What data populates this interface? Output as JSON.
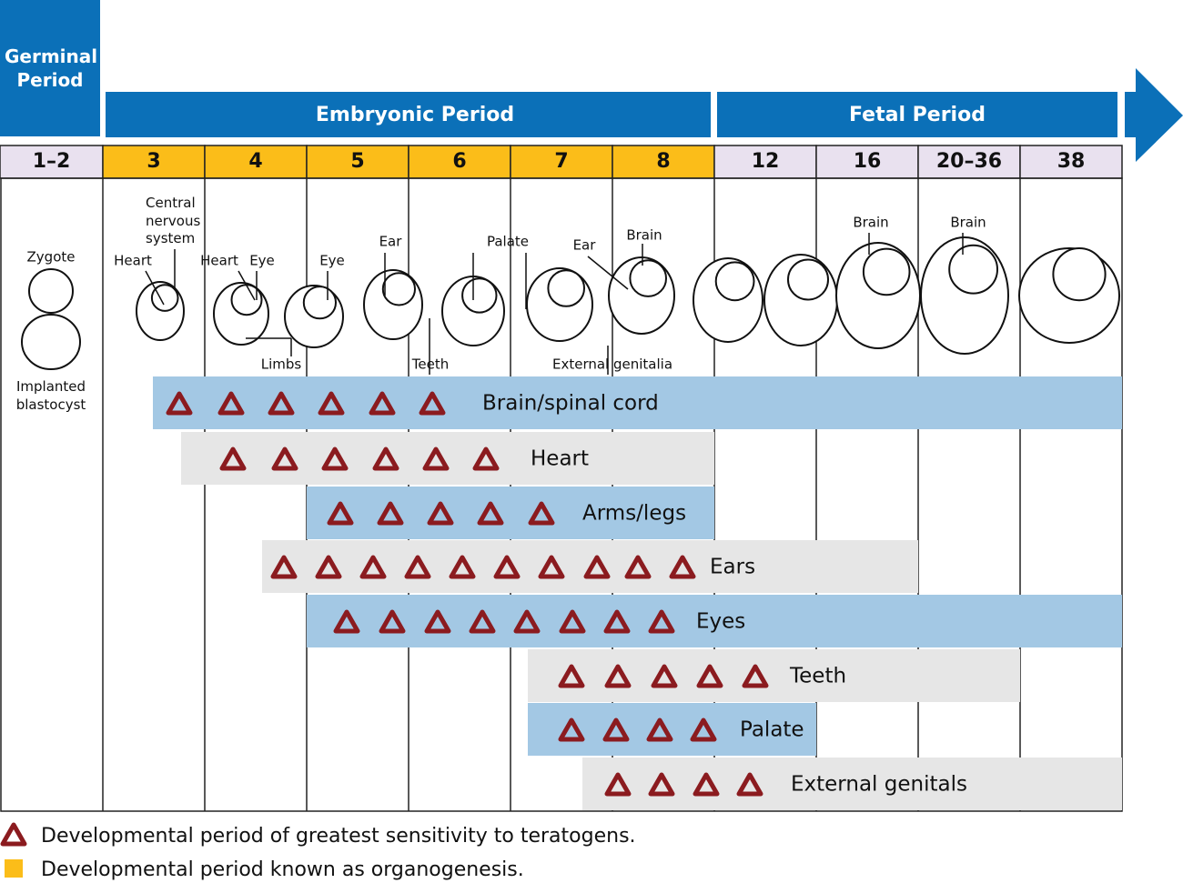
{
  "periods": {
    "germinal": "Germinal Period",
    "embryonic": "Embryonic Period",
    "fetal": "Fetal Period"
  },
  "weeks": [
    "1–2",
    "3",
    "4",
    "5",
    "6",
    "7",
    "8",
    "12",
    "16",
    "20–36",
    "38"
  ],
  "illustration_labels": [
    "Zygote",
    "Implanted blastocyst",
    "Heart",
    "Central nervous system",
    "Heart",
    "Eye",
    "Eye",
    "Limbs",
    "Ear",
    "Teeth",
    "Palate",
    "Ear",
    "Brain",
    "External genitalia",
    "Brain",
    "Brain"
  ],
  "sensitive_periods": [
    "Brain/spinal cord",
    "Heart",
    "Arms/legs",
    "Ears",
    "Eyes",
    "Teeth",
    "Palate",
    "External genitals"
  ],
  "legend": [
    "Developmental period of greatest sensitivity to teratogens.",
    "Developmental period known as organogenesis."
  ]
}
